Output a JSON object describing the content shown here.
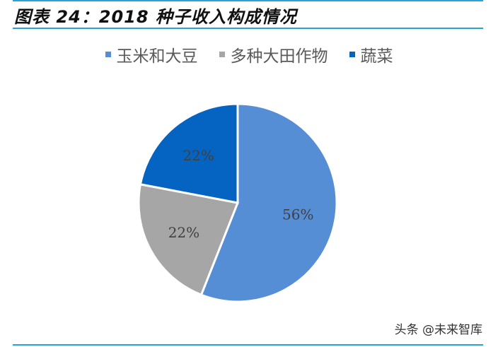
{
  "title": "图表 24：2018 种子收入构成情况",
  "watermark": "头条 @未来智库",
  "chart_data": {
    "type": "pie",
    "title": "2018 种子收入构成情况",
    "categories": [
      "玉米和大豆",
      "多种大田作物",
      "蔬菜"
    ],
    "values": [
      56,
      22,
      22
    ],
    "labels": [
      "56%",
      "22%",
      "22%"
    ],
    "colors": [
      "#558ed5",
      "#a6a6a6",
      "#0563c1"
    ],
    "legend_position": "top"
  }
}
